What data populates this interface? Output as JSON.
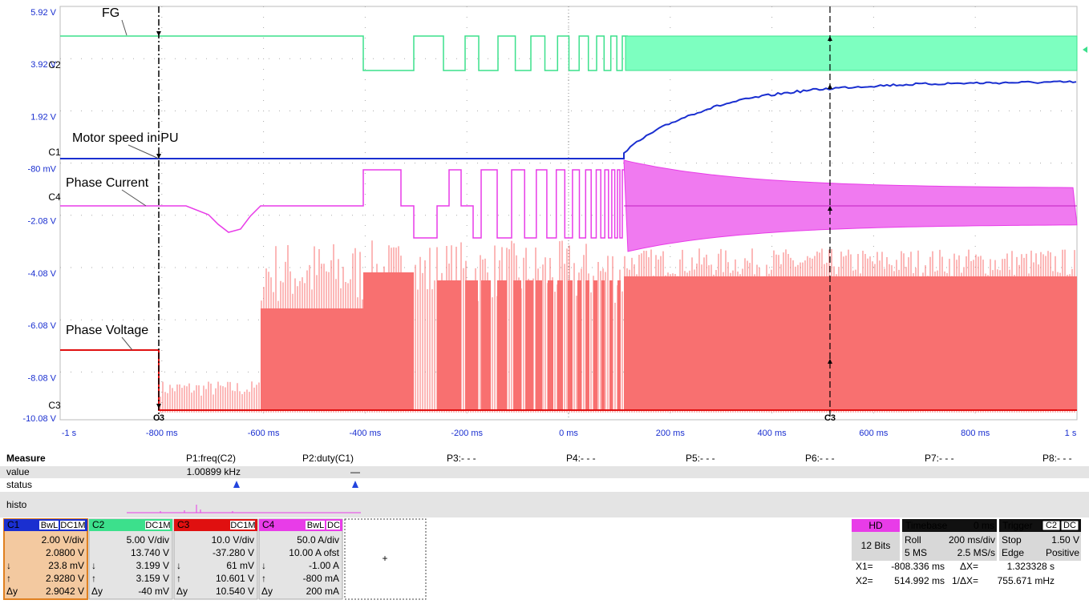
{
  "plot": {
    "y_labels": [
      "5.92 V",
      "3.92 V",
      "1.92 V",
      "-80 mV",
      "-2.08 V",
      "-4.08 V",
      "-6.08 V",
      "-8.08 V",
      "-10.08 V"
    ],
    "x_labels": [
      "-1 s",
      "-800 ms",
      "-600 ms",
      "-400 ms",
      "-200 ms",
      "0 ms",
      "200 ms",
      "400 ms",
      "600 ms",
      "800 ms",
      "1 s"
    ],
    "annotations": [
      "FG",
      "Motor speed in PU",
      "Phase Current",
      "Phase Voltage"
    ],
    "channel_markers": [
      "C2",
      "C1",
      "C4",
      "C3"
    ],
    "cursor_labels": [
      "C3",
      "C3"
    ]
  },
  "measure": {
    "header": [
      "Measure",
      "P1:freq(C2)",
      "P2:duty(C1)",
      "P3:- - -",
      "P4:- - -",
      "P5:- - -",
      "P6:- - -",
      "P7:- - -",
      "P8:- - -"
    ],
    "value_row": [
      "value",
      "1.00899 kHz",
      "—"
    ],
    "status_label": "status",
    "histo_label": "histo"
  },
  "channels": [
    {
      "name": "C1",
      "tags": [
        "BwL",
        "DC1M"
      ],
      "rows": [
        {
          "val": "2.00 V/div"
        },
        {
          "val": "2.0800 V"
        },
        {
          "sym": "↓",
          "val": "23.8 mV"
        },
        {
          "sym": "↑",
          "val": "2.9280 V"
        },
        {
          "sym": "Δy",
          "val": "2.9042 V"
        }
      ]
    },
    {
      "name": "C2",
      "tags": [
        "DC1M"
      ],
      "rows": [
        {
          "val": "5.00 V/div"
        },
        {
          "val": "13.740 V"
        },
        {
          "sym": "↓",
          "val": "3.199 V"
        },
        {
          "sym": "↑",
          "val": "3.159 V"
        },
        {
          "sym": "Δy",
          "val": "-40 mV"
        }
      ]
    },
    {
      "name": "C3",
      "tags": [
        "DC1M"
      ],
      "rows": [
        {
          "val": "10.0 V/div"
        },
        {
          "val": "-37.280 V"
        },
        {
          "sym": "↓",
          "val": "61 mV"
        },
        {
          "sym": "↑",
          "val": "10.601 V"
        },
        {
          "sym": "Δy",
          "val": "10.540 V"
        }
      ]
    },
    {
      "name": "C4",
      "tags": [
        "BwL",
        "DC"
      ],
      "rows": [
        {
          "val": "50.0 A/div"
        },
        {
          "val": "10.00 A ofst"
        },
        {
          "sym": "↓",
          "val": "-1.00 A"
        },
        {
          "sym": "↑",
          "val": "-800 mA"
        },
        {
          "sym": "Δy",
          "val": "200 mA"
        }
      ]
    }
  ],
  "add_button": "+",
  "acquisition": {
    "mode": "HD",
    "bits": "12 Bits"
  },
  "timebase": {
    "title": "Timebase",
    "delay": "0 ms",
    "rows": [
      [
        "Roll",
        "200 ms/div"
      ],
      [
        "5 MS",
        "2.5 MS/s"
      ]
    ]
  },
  "trigger": {
    "title": "Trigger",
    "tags": [
      "C2",
      "DC"
    ],
    "rows": [
      [
        "Stop",
        "1.50 V"
      ],
      [
        "Edge",
        "Positive"
      ]
    ]
  },
  "cursors": [
    [
      "X1=",
      "-808.336 ms",
      "ΔX=",
      "1.323328 s"
    ],
    [
      "X2=",
      "514.992 ms",
      "1/ΔX=",
      "755.671 mHz"
    ]
  ]
}
